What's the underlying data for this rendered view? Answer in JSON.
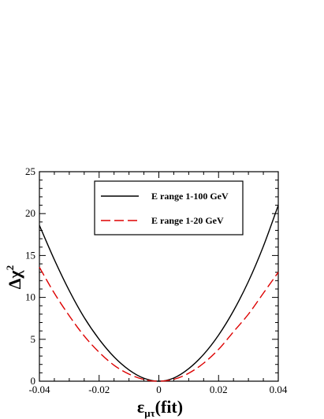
{
  "chart_data": {
    "type": "line",
    "xlabel": "ε",
    "xlabel_sub": "μτ",
    "xlabel_suffix": "(fit)",
    "ylabel": "Δχ",
    "ylabel_sup": "2",
    "xlim": [
      -0.04,
      0.04
    ],
    "ylim": [
      0,
      25
    ],
    "xticks": [
      -0.04,
      -0.02,
      0,
      0.02,
      0.04
    ],
    "xtick_labels": [
      "-0.04",
      "-0.02",
      "0",
      "0.02",
      "0.04"
    ],
    "yticks": [
      0,
      5,
      10,
      15,
      20,
      25
    ],
    "ytick_labels": [
      "0",
      "5",
      "10",
      "15",
      "20",
      "25"
    ],
    "legend_position": "top-center",
    "series": [
      {
        "name": "E range 1-100 GeV",
        "color": "#000000",
        "style": "solid",
        "x": [
          -0.04,
          -0.035,
          -0.03,
          -0.025,
          -0.02,
          -0.015,
          -0.01,
          -0.005,
          0,
          0.005,
          0.01,
          0.015,
          0.02,
          0.025,
          0.03,
          0.035,
          0.04
        ],
        "y": [
          18.6,
          14.5,
          10.8,
          7.6,
          5.0,
          2.9,
          1.35,
          0.35,
          0.0,
          0.38,
          1.5,
          3.2,
          5.5,
          8.4,
          11.9,
          16.1,
          21.0
        ]
      },
      {
        "name": "E range 1-20 GeV",
        "color": "#dd0000",
        "style": "dashed",
        "x": [
          -0.04,
          -0.035,
          -0.03,
          -0.025,
          -0.02,
          -0.015,
          -0.01,
          -0.005,
          0,
          0.005,
          0.01,
          0.015,
          0.02,
          0.025,
          0.03,
          0.035,
          0.04
        ],
        "y": [
          13.6,
          10.5,
          7.8,
          5.4,
          3.45,
          1.9,
          0.85,
          0.2,
          0.0,
          0.22,
          0.95,
          2.15,
          3.8,
          5.9,
          8.0,
          10.5,
          13.0
        ]
      }
    ]
  }
}
